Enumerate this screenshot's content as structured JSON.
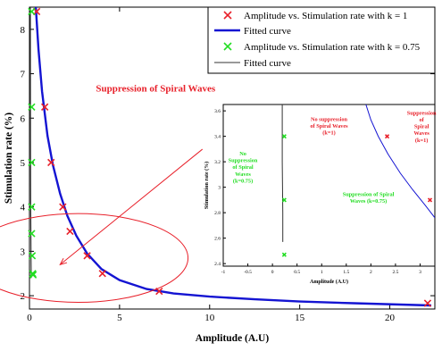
{
  "chart_data": [
    {
      "type": "scatter",
      "xlabel": "Amplitude (A.U)",
      "ylabel": "Stimulation rate (%)",
      "xlim": [
        0,
        22.5
      ],
      "ylim": [
        1.7,
        8.5
      ],
      "xticks": [
        0,
        5,
        10,
        15,
        20
      ],
      "yticks": [
        2,
        3,
        4,
        5,
        6,
        7,
        8
      ],
      "legend_position": "top-right",
      "series": [
        {
          "name": "Amplitude vs. Stimulation rate with k = 1",
          "kind": "points",
          "marker": "x",
          "color": "#e8202a",
          "x": [
            0.4,
            0.85,
            1.2,
            1.85,
            2.25,
            3.2,
            4.05,
            7.2,
            22.1
          ],
          "y": [
            8.4,
            6.25,
            5.0,
            4.0,
            3.45,
            2.9,
            2.5,
            2.1,
            1.83
          ]
        },
        {
          "name": "Fitted curve",
          "kind": "line",
          "color": "#1414d2",
          "x": [
            0.35,
            0.5,
            0.7,
            1.0,
            1.3,
            1.7,
            2.1,
            2.6,
            3.2,
            4.0,
            5.0,
            6.5,
            8.0,
            10.0,
            12.5,
            15.0,
            18.0,
            22.3
          ],
          "y": [
            8.5,
            7.55,
            6.6,
            5.6,
            4.95,
            4.3,
            3.8,
            3.35,
            2.95,
            2.6,
            2.35,
            2.15,
            2.05,
            1.98,
            1.92,
            1.87,
            1.83,
            1.78
          ]
        },
        {
          "name": "Amplitude vs. Stimulation rate with k = 0.75",
          "kind": "points",
          "marker": "x",
          "color": "#22dd22",
          "x": [
            0.12,
            0.12,
            0.12,
            0.12,
            0.12,
            0.15,
            0.18,
            0.2
          ],
          "y": [
            8.4,
            6.25,
            5.0,
            4.0,
            3.4,
            2.9,
            2.5,
            2.47
          ]
        },
        {
          "name": "Fitted curve",
          "kind": "line",
          "color": "#333333",
          "x": [
            0.05,
            0.06,
            0.07,
            0.09,
            0.1
          ],
          "y": [
            8.5,
            5.5,
            4.0,
            2.8,
            2.4
          ]
        }
      ],
      "annotations": [
        {
          "text": "Suppression of Spiral Waves",
          "color": "#e8202a",
          "x": 7.0,
          "y": 6.6
        }
      ],
      "highlight_ellipse": {
        "cx": 2.7,
        "cy": 2.85,
        "rx": 6.1,
        "ry": 1.0,
        "color": "#e8202a"
      },
      "arrow": {
        "from": [
          9.6,
          5.3
        ],
        "to": [
          1.7,
          2.7
        ],
        "color": "#e8202a"
      }
    },
    {
      "type": "scatter",
      "inset": true,
      "xlabel": "Amplitude (A.U)",
      "ylabel": "Stimulation rate (%)",
      "xlim": [
        -1,
        3.3
      ],
      "ylim": [
        2.38,
        3.65
      ],
      "xticks": [
        -1,
        -0.5,
        0,
        0.5,
        1,
        1.5,
        2,
        2.5,
        3
      ],
      "xtick_labels": [
        "-1",
        "-0.5",
        "0",
        "0.5",
        "1",
        "1.5",
        "2",
        "2.5",
        "3"
      ],
      "yticks": [
        2.4,
        2.6,
        2.8,
        3.0,
        3.2,
        3.4,
        3.6
      ],
      "ytick_labels": [
        "2.4",
        "2.6",
        "2.8",
        "3",
        "3.2",
        "3.4",
        "3.6"
      ],
      "series": [
        {
          "kind": "points",
          "marker": "x",
          "color": "#e8202a",
          "x": [
            2.33,
            3.2
          ],
          "y": [
            3.4,
            2.9
          ]
        },
        {
          "kind": "points",
          "marker": "x",
          "color": "#22dd22",
          "x": [
            0.24,
            0.24,
            0.24
          ],
          "y": [
            3.4,
            2.9,
            2.47
          ]
        },
        {
          "kind": "line",
          "color": "#1414d2",
          "x": [
            1.9,
            2.0,
            2.15,
            2.35,
            2.6,
            2.85,
            3.1,
            3.3
          ],
          "y": [
            3.65,
            3.53,
            3.4,
            3.26,
            3.11,
            2.98,
            2.86,
            2.76
          ]
        },
        {
          "kind": "line",
          "color": "#333333",
          "x": [
            0.2,
            0.2,
            0.21,
            0.21
          ],
          "y": [
            3.65,
            3.2,
            2.8,
            2.57
          ]
        }
      ],
      "annotations": [
        {
          "lines": [
            "No suppression",
            "of Spiral Waves",
            "(k=1)"
          ],
          "color": "#e8202a",
          "x": 1.15,
          "y": 3.52
        },
        {
          "lines": [
            "Suppression",
            "of",
            "Spiral",
            "Waves",
            "(k=1)"
          ],
          "color": "#e8202a",
          "x": 3.03,
          "y": 3.57
        },
        {
          "lines": [
            "No",
            "Suppression",
            "of Spiral",
            "Waves",
            "(k=0.75)"
          ],
          "color": "#22dd22",
          "x": -0.6,
          "y": 3.25
        },
        {
          "lines": [
            "Suppression of Spiral",
            "Waves (k=0.75)"
          ],
          "color": "#22dd22",
          "x": 1.95,
          "y": 2.93
        }
      ]
    }
  ]
}
